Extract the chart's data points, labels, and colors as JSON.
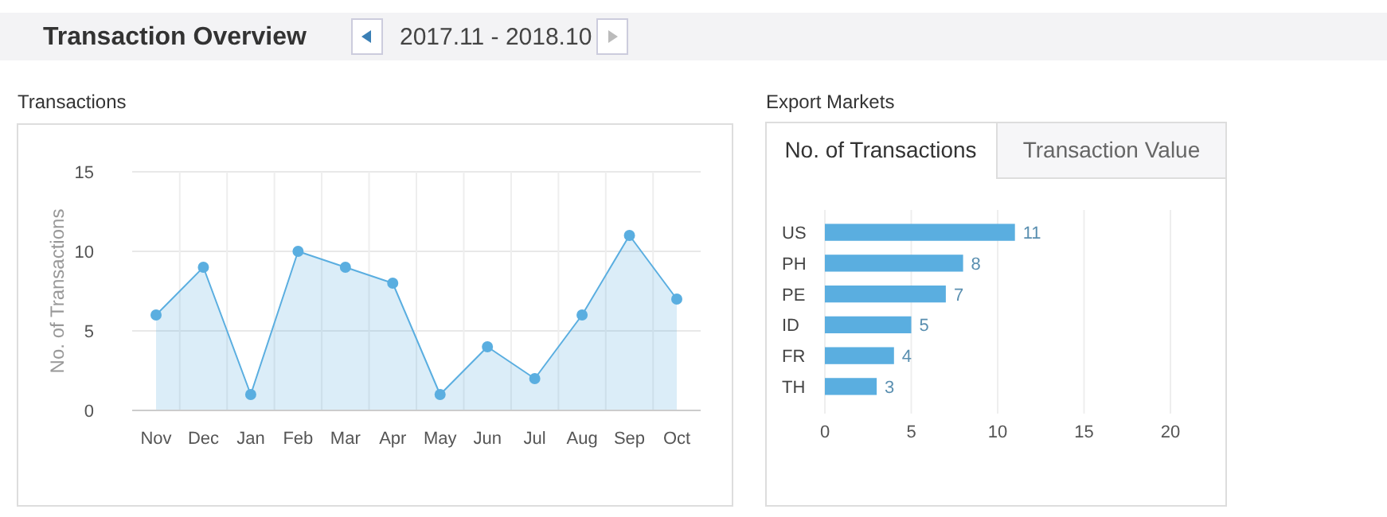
{
  "chart_data": [
    {
      "type": "other",
      "title": "Transaction Overview",
      "annotations": [
        "2017.11 - 2018.10"
      ]
    },
    {
      "type": "area",
      "title": "Transactions",
      "ylabel": "No. of Transactions",
      "categories": [
        "Nov",
        "Dec",
        "Jan",
        "Feb",
        "Mar",
        "Apr",
        "May",
        "Jun",
        "Jul",
        "Aug",
        "Sep",
        "Oct"
      ],
      "series": [
        {
          "color": "#5aaee0",
          "values": [
            6,
            9,
            1,
            10,
            9,
            8,
            1,
            4,
            2,
            6,
            11,
            7
          ]
        }
      ],
      "ylim": [
        0,
        15
      ],
      "yticks": [
        0,
        5,
        10,
        15
      ],
      "grid": true,
      "marker": "circle",
      "line_style": "solid"
    },
    {
      "type": "bar",
      "title": "Export Markets",
      "orientation": "horizontal",
      "annotations": [
        "No. of Transactions",
        "Transaction Value"
      ],
      "categories": [
        "US",
        "PH",
        "PE",
        "ID",
        "FR",
        "TH"
      ],
      "values": [
        11,
        8,
        7,
        5,
        4,
        3
      ],
      "color": "#5aaee0",
      "xlim": [
        0,
        20
      ],
      "xticks": [
        0,
        5,
        10,
        15,
        20
      ],
      "grid": "x",
      "data_labels": true
    }
  ]
}
